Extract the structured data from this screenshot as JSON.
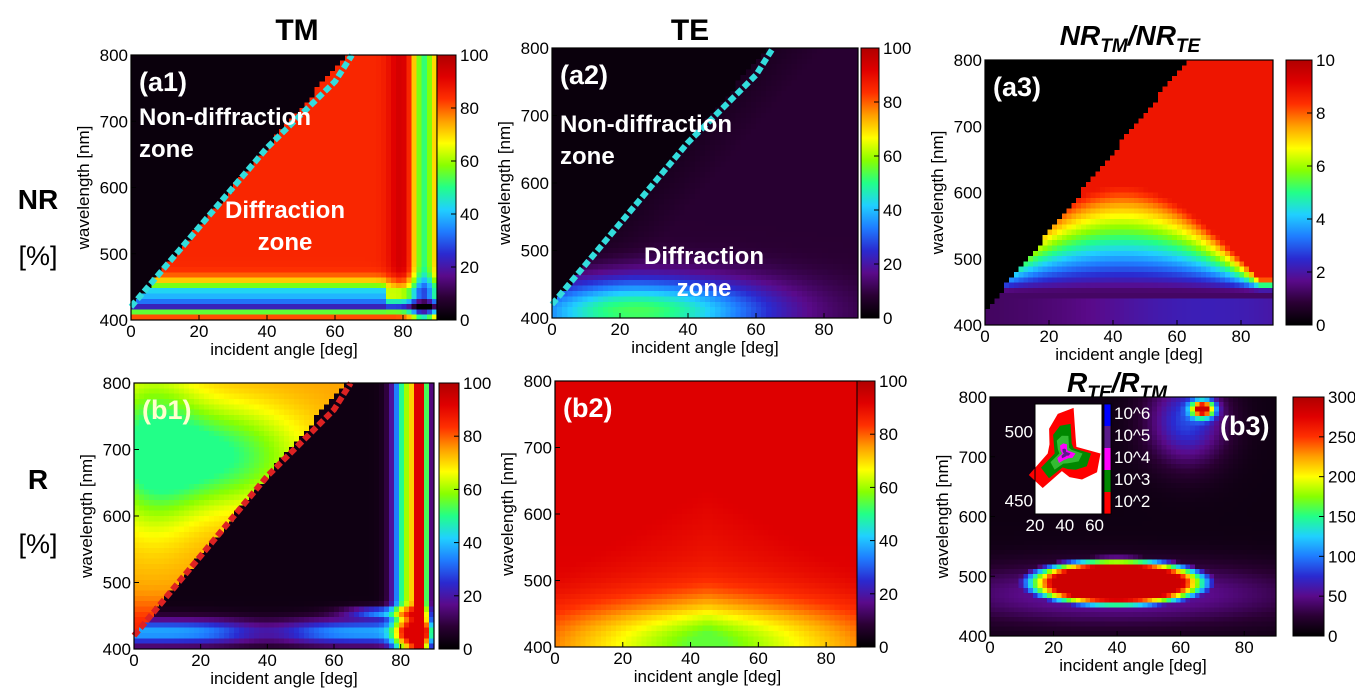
{
  "column_titles": [
    "TM",
    "TE"
  ],
  "row_labels": [
    {
      "name": "NR",
      "unit": "[%]"
    },
    {
      "name": "R",
      "unit": "[%]"
    }
  ],
  "colormap": {
    "name": "jet-like",
    "stops": [
      "#000000",
      "#2a0033",
      "#5a0a8a",
      "#2a2ad0",
      "#1f7cff",
      "#20d0ff",
      "#22ff88",
      "#88ff00",
      "#ffff00",
      "#ffa000",
      "#ff3000",
      "#e00000",
      "#b00000"
    ]
  },
  "overlay_colors": {
    "tm_nr_cutoff": "#33dddd",
    "tm_r_cutoff": "#dd2222"
  },
  "chart_data": [
    {
      "id": "a1",
      "type": "heatmap",
      "panel_label": "(a1)",
      "xlabel": "incident angle [deg]",
      "ylabel": "wavelength [nm]",
      "xlim": [
        0,
        90
      ],
      "ylim": [
        400,
        800
      ],
      "xticks": [
        0,
        20,
        40,
        60,
        80
      ],
      "yticks": [
        400,
        500,
        600,
        700,
        800
      ],
      "colorbar": {
        "min": 0,
        "max": 100,
        "ticks": [
          0,
          20,
          40,
          60,
          80,
          100
        ]
      },
      "annotations": [
        "Non-diffraction",
        "zone",
        "Diffraction",
        "zone"
      ],
      "cutoff_curve": [
        [
          0,
          420
        ],
        [
          10,
          480
        ],
        [
          20,
          540
        ],
        [
          30,
          600
        ],
        [
          40,
          660
        ],
        [
          50,
          710
        ],
        [
          60,
          760
        ],
        [
          65,
          800
        ]
      ],
      "field": "tm_nr"
    },
    {
      "id": "a2",
      "type": "heatmap",
      "panel_label": "(a2)",
      "xlabel": "incident angle [deg]",
      "ylabel": "wavelength [nm]",
      "xlim": [
        0,
        90
      ],
      "ylim": [
        400,
        800
      ],
      "xticks": [
        0,
        20,
        40,
        60,
        80
      ],
      "yticks": [
        400,
        500,
        600,
        700,
        800
      ],
      "colorbar": {
        "min": 0,
        "max": 100,
        "ticks": [
          0,
          20,
          40,
          60,
          80,
          100
        ]
      },
      "annotations": [
        "Non-diffraction",
        "zone",
        "Diffraction",
        "zone"
      ],
      "cutoff_curve": [
        [
          0,
          420
        ],
        [
          10,
          480
        ],
        [
          20,
          540
        ],
        [
          30,
          600
        ],
        [
          40,
          660
        ],
        [
          50,
          710
        ],
        [
          60,
          760
        ],
        [
          65,
          800
        ]
      ],
      "field": "te_nr"
    },
    {
      "id": "a3",
      "type": "heatmap",
      "panel_label": "(a3)",
      "title": "NR_TM/NR_TE",
      "xlabel": "incident angle [deg]",
      "ylabel": "wavelength [nm]",
      "xlim": [
        0,
        90
      ],
      "ylim": [
        400,
        800
      ],
      "xticks": [
        0,
        20,
        40,
        60,
        80
      ],
      "yticks": [
        400,
        500,
        600,
        700,
        800
      ],
      "colorbar": {
        "min": 0,
        "max": 10,
        "ticks": [
          0,
          2,
          4,
          6,
          8,
          10
        ]
      },
      "field": "nr_ratio"
    },
    {
      "id": "b1",
      "type": "heatmap",
      "panel_label": "(b1)",
      "xlabel": "incident angle [deg]",
      "ylabel": "wavelength [nm]",
      "xlim": [
        0,
        90
      ],
      "ylim": [
        400,
        800
      ],
      "xticks": [
        0,
        20,
        40,
        60,
        80
      ],
      "yticks": [
        400,
        500,
        600,
        700,
        800
      ],
      "colorbar": {
        "min": 0,
        "max": 100,
        "ticks": [
          0,
          20,
          40,
          60,
          80,
          100
        ]
      },
      "cutoff_curve": [
        [
          0,
          420
        ],
        [
          10,
          480
        ],
        [
          20,
          540
        ],
        [
          30,
          600
        ],
        [
          40,
          660
        ],
        [
          50,
          710
        ],
        [
          60,
          760
        ],
        [
          65,
          800
        ]
      ],
      "field": "tm_r"
    },
    {
      "id": "b2",
      "type": "heatmap",
      "panel_label": "(b2)",
      "xlabel": "incident angle [deg]",
      "ylabel": "wavelength [nm]",
      "xlim": [
        0,
        90
      ],
      "ylim": [
        400,
        800
      ],
      "xticks": [
        0,
        20,
        40,
        60,
        80
      ],
      "yticks": [
        400,
        500,
        600,
        700,
        800
      ],
      "colorbar": {
        "min": 0,
        "max": 100,
        "ticks": [
          0,
          20,
          40,
          60,
          80,
          100
        ]
      },
      "field": "te_r"
    },
    {
      "id": "b3",
      "type": "heatmap",
      "panel_label": "(b3)",
      "title": "R_TE/R_TM",
      "xlabel": "incident angle [deg]",
      "ylabel": "wavelength [nm]",
      "xlim": [
        0,
        90
      ],
      "ylim": [
        400,
        800
      ],
      "xticks": [
        0,
        20,
        40,
        60,
        80
      ],
      "yticks": [
        400,
        500,
        600,
        700,
        800
      ],
      "colorbar": {
        "min": 0,
        "max": 300,
        "ticks": [
          0,
          50,
          100,
          150,
          200,
          250,
          300
        ]
      },
      "field": "r_ratio",
      "inset": {
        "xlim": [
          20,
          65
        ],
        "ylim": [
          440,
          520
        ],
        "xticks": [
          20,
          40,
          60
        ],
        "yticks": [
          450,
          500
        ],
        "colorbar_labels": [
          "10^6",
          "10^5",
          "10^4",
          "10^3",
          "10^2"
        ],
        "colorbar_colors": [
          "#0000ff",
          "#5a1a8a",
          "#ff00ff",
          "#008800",
          "#ff0000"
        ]
      }
    }
  ]
}
